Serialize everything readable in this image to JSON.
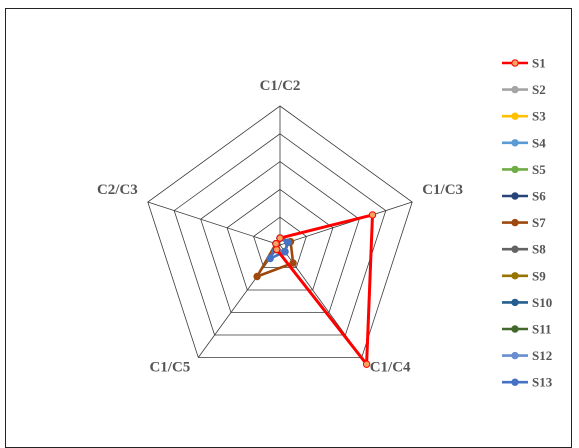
{
  "chart_data": {
    "type": "radar",
    "title": "",
    "axes": [
      "C1/C2",
      "C1/C3",
      "C1/C4",
      "C1/C5",
      "C2/C3"
    ],
    "range": [
      0,
      5
    ],
    "rings": 5,
    "series": [
      {
        "name": "S1",
        "color": "#ff0000",
        "values": [
          0.25,
          3.5,
          5.3,
          0.2,
          0.15
        ]
      },
      {
        "name": "S2",
        "color": "#a5a5a5",
        "values": [
          0.25,
          0.3,
          0.3,
          0.2,
          0.15
        ]
      },
      {
        "name": "S3",
        "color": "#ffc000",
        "values": [
          0.25,
          0.3,
          0.3,
          0.2,
          0.15
        ]
      },
      {
        "name": "S4",
        "color": "#5b9bd5",
        "values": [
          0.25,
          0.3,
          0.3,
          0.2,
          0.15
        ]
      },
      {
        "name": "S5",
        "color": "#70ad47",
        "values": [
          0.25,
          0.3,
          0.3,
          0.2,
          0.15
        ]
      },
      {
        "name": "S6",
        "color": "#264478",
        "values": [
          0.25,
          0.3,
          0.3,
          0.2,
          0.15
        ]
      },
      {
        "name": "S7",
        "color": "#9e480e",
        "values": [
          0.25,
          0.4,
          0.8,
          1.4,
          0.15
        ]
      },
      {
        "name": "S8",
        "color": "#636363",
        "values": [
          0.25,
          0.3,
          0.3,
          0.2,
          0.15
        ]
      },
      {
        "name": "S9",
        "color": "#997300",
        "values": [
          0.25,
          0.3,
          0.3,
          0.2,
          0.15
        ]
      },
      {
        "name": "S10",
        "color": "#255e91",
        "values": [
          0.25,
          0.3,
          0.3,
          0.2,
          0.15
        ]
      },
      {
        "name": "S11",
        "color": "#43682b",
        "values": [
          0.25,
          0.3,
          0.3,
          0.2,
          0.15
        ]
      },
      {
        "name": "S12",
        "color": "#698ed0",
        "values": [
          0.25,
          0.3,
          0.3,
          0.2,
          0.15
        ]
      },
      {
        "name": "S13",
        "color": "#4472c4",
        "values": [
          0.25,
          0.3,
          0.3,
          0.6,
          0.15
        ]
      }
    ],
    "grid": true,
    "legend": "right"
  }
}
